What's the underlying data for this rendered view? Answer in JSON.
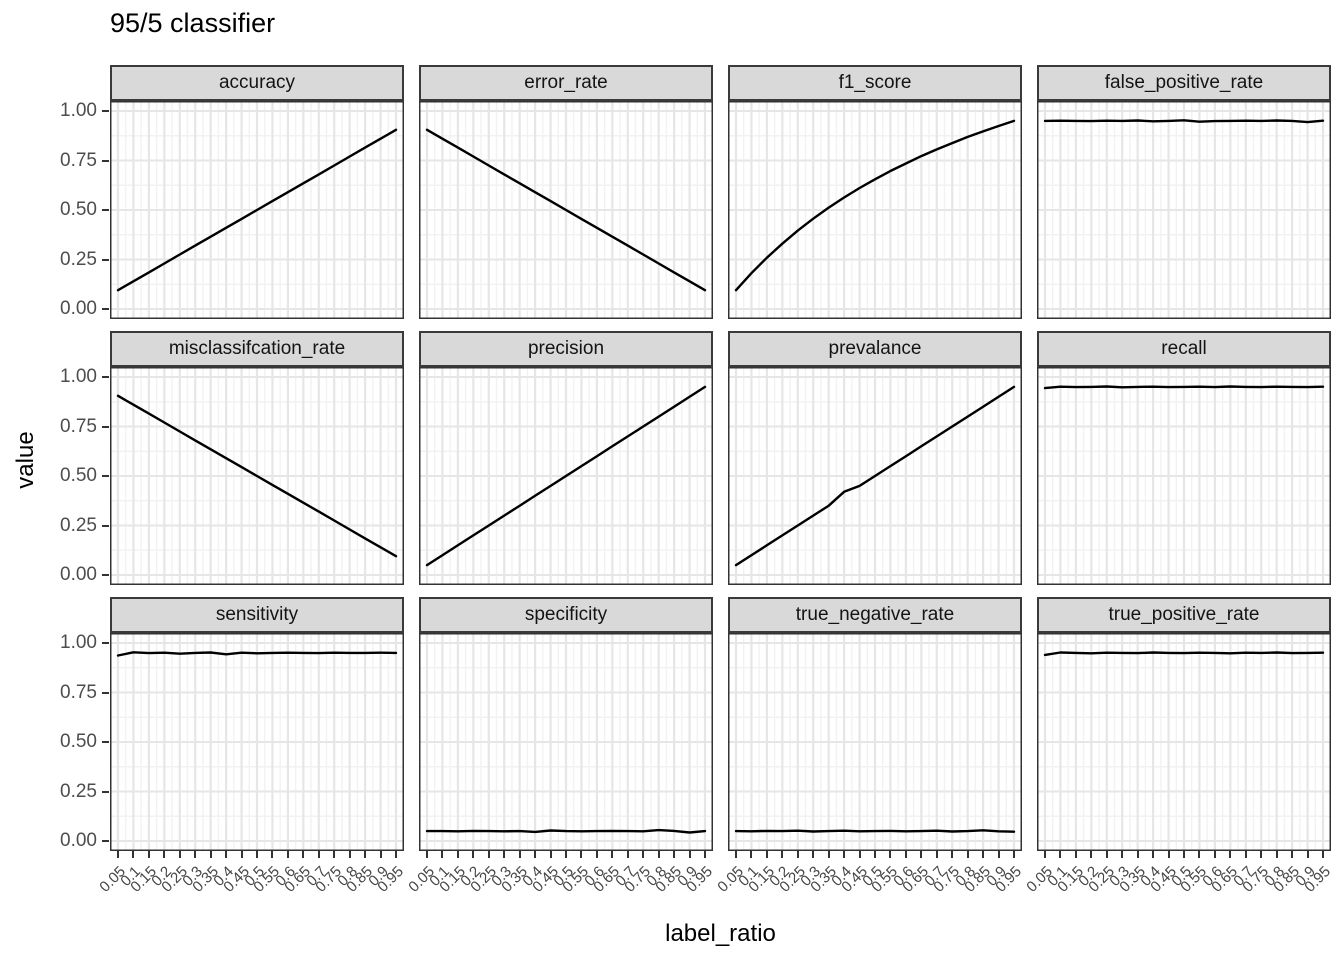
{
  "title": "95/5 classifier",
  "y_axis": {
    "label": "value",
    "ticks": [
      "1.00",
      "0.75",
      "0.50",
      "0.25",
      "0.00"
    ]
  },
  "x_axis": {
    "label": "label_ratio",
    "ticks": [
      "0.05",
      "0.1",
      "0.15",
      "0.2",
      "0.25",
      "0.3",
      "0.35",
      "0.4",
      "0.45",
      "0.5",
      "0.55",
      "0.6",
      "0.65",
      "0.7",
      "0.75",
      "0.8",
      "0.85",
      "0.9",
      "0.95"
    ]
  },
  "colors": {
    "line": "#000000",
    "strip_bg": "#d9d9d9",
    "panel_border": "#333333",
    "grid_major": "#e6e6e6",
    "grid_minor": "#f2f2f2",
    "tick_label": "#4d4d4d"
  },
  "chart_data": {
    "type": "line",
    "title": "95/5 classifier",
    "xlabel": "label_ratio",
    "ylabel": "value",
    "ylim": [
      0,
      1
    ],
    "grid": true,
    "facet_layout": {
      "rows": 3,
      "cols": 4
    },
    "x": [
      0.05,
      0.1,
      0.15,
      0.2,
      0.25,
      0.3,
      0.35,
      0.4,
      0.45,
      0.5,
      0.55,
      0.6,
      0.65,
      0.7,
      0.75,
      0.8,
      0.85,
      0.9,
      0.95
    ],
    "facets": [
      {
        "label": "accuracy",
        "values": [
          0.095,
          0.14,
          0.185,
          0.23,
          0.275,
          0.32,
          0.365,
          0.41,
          0.455,
          0.5,
          0.545,
          0.59,
          0.635,
          0.68,
          0.725,
          0.77,
          0.815,
          0.86,
          0.905
        ]
      },
      {
        "label": "error_rate",
        "values": [
          0.905,
          0.86,
          0.815,
          0.77,
          0.725,
          0.68,
          0.635,
          0.59,
          0.545,
          0.5,
          0.455,
          0.41,
          0.365,
          0.32,
          0.275,
          0.23,
          0.185,
          0.14,
          0.095
        ]
      },
      {
        "label": "f1_score",
        "values": [
          0.095,
          0.181,
          0.259,
          0.33,
          0.396,
          0.456,
          0.512,
          0.563,
          0.611,
          0.655,
          0.697,
          0.735,
          0.772,
          0.806,
          0.838,
          0.869,
          0.897,
          0.924,
          0.95
        ]
      },
      {
        "label": "false_positive_rate",
        "values": [
          0.95,
          0.951,
          0.95,
          0.949,
          0.951,
          0.95,
          0.952,
          0.948,
          0.95,
          0.953,
          0.946,
          0.949,
          0.95,
          0.951,
          0.95,
          0.952,
          0.95,
          0.944,
          0.951
        ]
      },
      {
        "label": "misclassifcation_rate",
        "values": [
          0.905,
          0.86,
          0.815,
          0.77,
          0.725,
          0.68,
          0.635,
          0.59,
          0.545,
          0.5,
          0.455,
          0.41,
          0.365,
          0.32,
          0.275,
          0.23,
          0.185,
          0.14,
          0.095
        ]
      },
      {
        "label": "precision",
        "values": [
          0.05,
          0.1,
          0.15,
          0.2,
          0.25,
          0.3,
          0.35,
          0.4,
          0.45,
          0.5,
          0.55,
          0.6,
          0.65,
          0.7,
          0.75,
          0.8,
          0.85,
          0.9,
          0.95
        ]
      },
      {
        "label": "prevalance",
        "values": [
          0.05,
          0.1,
          0.15,
          0.2,
          0.25,
          0.3,
          0.35,
          0.42,
          0.45,
          0.5,
          0.55,
          0.6,
          0.65,
          0.7,
          0.75,
          0.8,
          0.85,
          0.9,
          0.95
        ]
      },
      {
        "label": "recall",
        "values": [
          0.944,
          0.951,
          0.949,
          0.95,
          0.952,
          0.948,
          0.95,
          0.951,
          0.949,
          0.95,
          0.951,
          0.949,
          0.952,
          0.95,
          0.949,
          0.951,
          0.95,
          0.949,
          0.951
        ]
      },
      {
        "label": "sensitivity",
        "values": [
          0.937,
          0.953,
          0.949,
          0.951,
          0.946,
          0.95,
          0.952,
          0.943,
          0.951,
          0.948,
          0.95,
          0.951,
          0.95,
          0.949,
          0.951,
          0.95,
          0.95,
          0.951,
          0.95
        ]
      },
      {
        "label": "specificity",
        "values": [
          0.05,
          0.05,
          0.049,
          0.051,
          0.05,
          0.049,
          0.05,
          0.046,
          0.053,
          0.05,
          0.049,
          0.05,
          0.051,
          0.05,
          0.049,
          0.055,
          0.051,
          0.043,
          0.05
        ]
      },
      {
        "label": "true_negative_rate",
        "values": [
          0.05,
          0.049,
          0.051,
          0.05,
          0.052,
          0.048,
          0.05,
          0.052,
          0.049,
          0.05,
          0.051,
          0.049,
          0.05,
          0.052,
          0.048,
          0.05,
          0.054,
          0.049,
          0.047
        ]
      },
      {
        "label": "true_positive_rate",
        "values": [
          0.94,
          0.952,
          0.95,
          0.948,
          0.951,
          0.95,
          0.949,
          0.952,
          0.95,
          0.949,
          0.951,
          0.95,
          0.948,
          0.951,
          0.95,
          0.952,
          0.949,
          0.95,
          0.951
        ]
      }
    ]
  }
}
